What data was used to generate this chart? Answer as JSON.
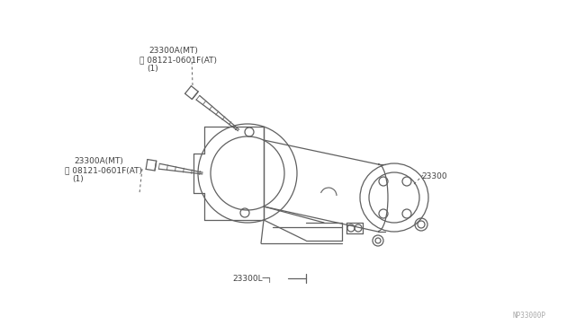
{
  "bg_color": "#ffffff",
  "line_color": "#606060",
  "text_color": "#404040",
  "watermark": "NP33000P",
  "figsize": [
    6.4,
    3.72
  ],
  "dpi": 100,
  "label_top_bolt_line1": "23300A(MT)",
  "label_top_bolt_line2": "B 08121-0601F(AT)",
  "label_top_bolt_line3": "(1)",
  "label_left_bolt_line1": "23300A(MT)",
  "label_left_bolt_line2": "B 08121-0601F(AT)",
  "label_left_bolt_line3": "(1)",
  "label_motor": "23300",
  "label_bottom": "23300L"
}
